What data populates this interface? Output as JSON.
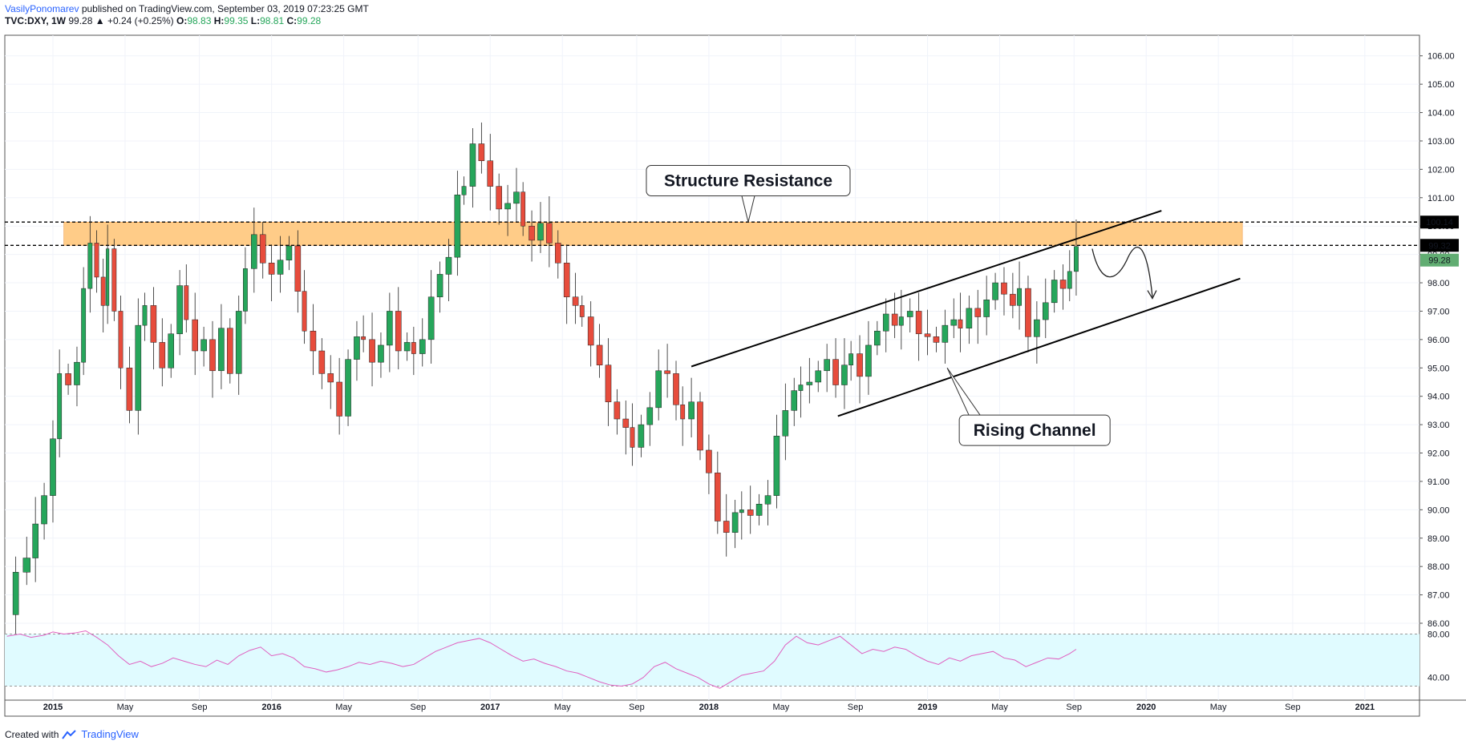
{
  "header": {
    "author": "VasilyPonomarev",
    "published": "published on TradingView.com, September 03, 2019 07:23:25 GMT",
    "symbol": "TVC:DXY, 1W",
    "last": "99.28",
    "change": "▲ +0.24 (+0.25%)",
    "o_label": "O:",
    "o_value": "98.83",
    "h_label": "H:",
    "h_value": "99.35",
    "l_label": "L:",
    "l_value": "98.81",
    "c_label": "C:",
    "c_value": "99.28"
  },
  "footer": {
    "created": "Created with",
    "brand": "TradingView"
  },
  "colors": {
    "up": "#26a65b",
    "down": "#e74c3c",
    "zone": "#ffcc88",
    "rsi_band": "#e0fbff",
    "rsi_line": "#e060c0",
    "price_tag": "#61ad72"
  },
  "chart_data": {
    "type": "candlestick",
    "symbol": "TVC:DXY",
    "interval": "1W",
    "y_ticks": [
      "106.00",
      "105.00",
      "104.00",
      "103.00",
      "102.00",
      "101.00",
      "100.00",
      "99.00",
      "98.00",
      "97.00",
      "96.00",
      "95.00",
      "94.00",
      "93.00",
      "92.00",
      "91.00",
      "90.00",
      "89.00",
      "88.00",
      "87.00",
      "86.00"
    ],
    "ylim": [
      86.0,
      106.5
    ],
    "x_ticks": [
      "2015",
      "May",
      "Sep",
      "2016",
      "May",
      "Sep",
      "2017",
      "May",
      "Sep",
      "2018",
      "May",
      "Sep",
      "2019",
      "May",
      "Sep",
      "2020",
      "May",
      "Sep",
      "2021"
    ],
    "x_tick_years": [
      2015.0,
      2015.33,
      2015.67,
      2016.0,
      2016.33,
      2016.67,
      2017.0,
      2017.33,
      2017.67,
      2018.0,
      2018.33,
      2018.67,
      2019.0,
      2019.33,
      2019.67,
      2020.0,
      2020.33,
      2020.67,
      2021.0
    ],
    "xlim": [
      2014.78,
      2021.25
    ],
    "close_path": [
      [
        2014.79,
        86.3
      ],
      [
        2014.83,
        87.8
      ],
      [
        2014.88,
        88.3
      ],
      [
        2014.92,
        89.5
      ],
      [
        2014.96,
        90.5
      ],
      [
        2015.0,
        92.5
      ],
      [
        2015.03,
        94.8
      ],
      [
        2015.07,
        94.4
      ],
      [
        2015.11,
        95.2
      ],
      [
        2015.14,
        97.8
      ],
      [
        2015.17,
        99.4
      ],
      [
        2015.2,
        98.2
      ],
      [
        2015.23,
        97.2
      ],
      [
        2015.25,
        99.2
      ],
      [
        2015.28,
        97.0
      ],
      [
        2015.31,
        95.0
      ],
      [
        2015.35,
        93.5
      ],
      [
        2015.39,
        96.5
      ],
      [
        2015.42,
        97.2
      ],
      [
        2015.46,
        95.9
      ],
      [
        2015.5,
        95.0
      ],
      [
        2015.54,
        96.2
      ],
      [
        2015.58,
        97.9
      ],
      [
        2015.61,
        96.7
      ],
      [
        2015.65,
        95.6
      ],
      [
        2015.69,
        96.0
      ],
      [
        2015.73,
        94.9
      ],
      [
        2015.77,
        96.4
      ],
      [
        2015.81,
        94.8
      ],
      [
        2015.85,
        97.0
      ],
      [
        2015.88,
        98.5
      ],
      [
        2015.92,
        99.7
      ],
      [
        2015.96,
        98.7
      ],
      [
        2016.0,
        98.3
      ],
      [
        2016.04,
        98.8
      ],
      [
        2016.08,
        99.3
      ],
      [
        2016.12,
        97.7
      ],
      [
        2016.15,
        96.3
      ],
      [
        2016.19,
        95.6
      ],
      [
        2016.23,
        94.8
      ],
      [
        2016.27,
        94.5
      ],
      [
        2016.31,
        93.3
      ],
      [
        2016.35,
        95.3
      ],
      [
        2016.39,
        96.1
      ],
      [
        2016.42,
        96.0
      ],
      [
        2016.46,
        95.2
      ],
      [
        2016.5,
        95.8
      ],
      [
        2016.54,
        97.0
      ],
      [
        2016.58,
        95.6
      ],
      [
        2016.62,
        95.9
      ],
      [
        2016.65,
        95.5
      ],
      [
        2016.69,
        96.0
      ],
      [
        2016.73,
        97.5
      ],
      [
        2016.77,
        98.3
      ],
      [
        2016.81,
        98.9
      ],
      [
        2016.85,
        101.1
      ],
      [
        2016.88,
        101.4
      ],
      [
        2016.92,
        102.9
      ],
      [
        2016.96,
        102.3
      ],
      [
        2017.0,
        101.4
      ],
      [
        2017.04,
        100.6
      ],
      [
        2017.08,
        100.8
      ],
      [
        2017.12,
        101.2
      ],
      [
        2017.15,
        100.0
      ],
      [
        2017.19,
        99.5
      ],
      [
        2017.23,
        100.1
      ],
      [
        2017.27,
        99.4
      ],
      [
        2017.31,
        98.7
      ],
      [
        2017.35,
        97.5
      ],
      [
        2017.39,
        97.2
      ],
      [
        2017.42,
        96.8
      ],
      [
        2017.46,
        95.8
      ],
      [
        2017.5,
        95.1
      ],
      [
        2017.54,
        93.8
      ],
      [
        2017.58,
        93.2
      ],
      [
        2017.62,
        92.9
      ],
      [
        2017.65,
        92.2
      ],
      [
        2017.69,
        93.0
      ],
      [
        2017.73,
        93.6
      ],
      [
        2017.77,
        94.9
      ],
      [
        2017.81,
        94.8
      ],
      [
        2017.85,
        93.7
      ],
      [
        2017.88,
        93.2
      ],
      [
        2017.92,
        93.8
      ],
      [
        2017.96,
        92.1
      ],
      [
        2018.0,
        91.3
      ],
      [
        2018.04,
        89.6
      ],
      [
        2018.08,
        89.2
      ],
      [
        2018.12,
        89.9
      ],
      [
        2018.15,
        90.0
      ],
      [
        2018.19,
        89.8
      ],
      [
        2018.23,
        90.2
      ],
      [
        2018.27,
        90.5
      ],
      [
        2018.31,
        92.6
      ],
      [
        2018.35,
        93.5
      ],
      [
        2018.39,
        94.2
      ],
      [
        2018.42,
        94.4
      ],
      [
        2018.46,
        94.5
      ],
      [
        2018.5,
        94.9
      ],
      [
        2018.54,
        95.3
      ],
      [
        2018.58,
        94.4
      ],
      [
        2018.62,
        95.1
      ],
      [
        2018.65,
        95.5
      ],
      [
        2018.69,
        94.7
      ],
      [
        2018.73,
        95.8
      ],
      [
        2018.77,
        96.3
      ],
      [
        2018.81,
        96.9
      ],
      [
        2018.85,
        96.5
      ],
      [
        2018.88,
        96.8
      ],
      [
        2018.92,
        97.0
      ],
      [
        2018.96,
        96.2
      ],
      [
        2019.0,
        96.1
      ],
      [
        2019.04,
        95.9
      ],
      [
        2019.08,
        96.5
      ],
      [
        2019.12,
        96.7
      ],
      [
        2019.15,
        96.4
      ],
      [
        2019.19,
        97.1
      ],
      [
        2019.23,
        96.8
      ],
      [
        2019.27,
        97.4
      ],
      [
        2019.31,
        98.0
      ],
      [
        2019.35,
        97.6
      ],
      [
        2019.39,
        97.2
      ],
      [
        2019.42,
        97.8
      ],
      [
        2019.46,
        96.1
      ],
      [
        2019.5,
        96.7
      ],
      [
        2019.54,
        97.3
      ],
      [
        2019.58,
        98.1
      ],
      [
        2019.62,
        97.8
      ],
      [
        2019.65,
        98.4
      ],
      [
        2019.68,
        99.28
      ]
    ],
    "rsi": {
      "levels": [
        "80.00",
        "40.00"
      ],
      "ylim": [
        25,
        90
      ],
      "values": [
        [
          2014.79,
          78
        ],
        [
          2014.85,
          80
        ],
        [
          2014.9,
          77
        ],
        [
          2014.96,
          79
        ],
        [
          2015.0,
          82
        ],
        [
          2015.05,
          80
        ],
        [
          2015.1,
          81
        ],
        [
          2015.15,
          83
        ],
        [
          2015.2,
          77
        ],
        [
          2015.25,
          70
        ],
        [
          2015.3,
          60
        ],
        [
          2015.35,
          52
        ],
        [
          2015.4,
          55
        ],
        [
          2015.45,
          50
        ],
        [
          2015.5,
          53
        ],
        [
          2015.55,
          58
        ],
        [
          2015.6,
          55
        ],
        [
          2015.65,
          52
        ],
        [
          2015.7,
          50
        ],
        [
          2015.75,
          56
        ],
        [
          2015.8,
          52
        ],
        [
          2015.85,
          60
        ],
        [
          2015.9,
          65
        ],
        [
          2015.95,
          68
        ],
        [
          2016.0,
          60
        ],
        [
          2016.05,
          62
        ],
        [
          2016.1,
          58
        ],
        [
          2016.15,
          50
        ],
        [
          2016.2,
          48
        ],
        [
          2016.25,
          45
        ],
        [
          2016.3,
          47
        ],
        [
          2016.35,
          50
        ],
        [
          2016.4,
          54
        ],
        [
          2016.45,
          52
        ],
        [
          2016.5,
          55
        ],
        [
          2016.55,
          53
        ],
        [
          2016.6,
          50
        ],
        [
          2016.65,
          52
        ],
        [
          2016.7,
          58
        ],
        [
          2016.75,
          64
        ],
        [
          2016.8,
          68
        ],
        [
          2016.85,
          72
        ],
        [
          2016.9,
          74
        ],
        [
          2016.95,
          76
        ],
        [
          2017.0,
          72
        ],
        [
          2017.05,
          66
        ],
        [
          2017.1,
          60
        ],
        [
          2017.15,
          55
        ],
        [
          2017.2,
          57
        ],
        [
          2017.25,
          53
        ],
        [
          2017.3,
          50
        ],
        [
          2017.35,
          46
        ],
        [
          2017.4,
          44
        ],
        [
          2017.45,
          40
        ],
        [
          2017.5,
          36
        ],
        [
          2017.55,
          33
        ],
        [
          2017.6,
          32
        ],
        [
          2017.65,
          34
        ],
        [
          2017.7,
          40
        ],
        [
          2017.75,
          50
        ],
        [
          2017.8,
          54
        ],
        [
          2017.85,
          48
        ],
        [
          2017.9,
          44
        ],
        [
          2017.95,
          40
        ],
        [
          2018.0,
          34
        ],
        [
          2018.05,
          30
        ],
        [
          2018.1,
          36
        ],
        [
          2018.15,
          42
        ],
        [
          2018.2,
          44
        ],
        [
          2018.25,
          46
        ],
        [
          2018.3,
          55
        ],
        [
          2018.35,
          70
        ],
        [
          2018.4,
          78
        ],
        [
          2018.45,
          72
        ],
        [
          2018.5,
          70
        ],
        [
          2018.55,
          74
        ],
        [
          2018.6,
          78
        ],
        [
          2018.65,
          70
        ],
        [
          2018.7,
          62
        ],
        [
          2018.75,
          66
        ],
        [
          2018.8,
          64
        ],
        [
          2018.85,
          68
        ],
        [
          2018.9,
          66
        ],
        [
          2018.95,
          60
        ],
        [
          2019.0,
          55
        ],
        [
          2019.05,
          52
        ],
        [
          2019.1,
          58
        ],
        [
          2019.15,
          55
        ],
        [
          2019.2,
          60
        ],
        [
          2019.25,
          62
        ],
        [
          2019.3,
          64
        ],
        [
          2019.35,
          58
        ],
        [
          2019.4,
          56
        ],
        [
          2019.45,
          50
        ],
        [
          2019.5,
          54
        ],
        [
          2019.55,
          58
        ],
        [
          2019.6,
          57
        ],
        [
          2019.65,
          62
        ],
        [
          2019.68,
          66
        ]
      ]
    },
    "price_labels": [
      "100.14",
      "99.32",
      "99.28"
    ],
    "resistance_zone": [
      99.32,
      100.14
    ],
    "channel_upper": [
      [
        2017.92,
        95.05
      ],
      [
        2020.07,
        100.54
      ]
    ],
    "channel_lower": [
      [
        2018.59,
        93.3
      ],
      [
        2020.43,
        98.15
      ]
    ],
    "annotations": [
      {
        "text": "Structure Resistance",
        "year": 2018.18,
        "price": 101.6
      },
      {
        "text": "Rising Channel",
        "year": 2019.49,
        "price": 92.8
      }
    ]
  }
}
